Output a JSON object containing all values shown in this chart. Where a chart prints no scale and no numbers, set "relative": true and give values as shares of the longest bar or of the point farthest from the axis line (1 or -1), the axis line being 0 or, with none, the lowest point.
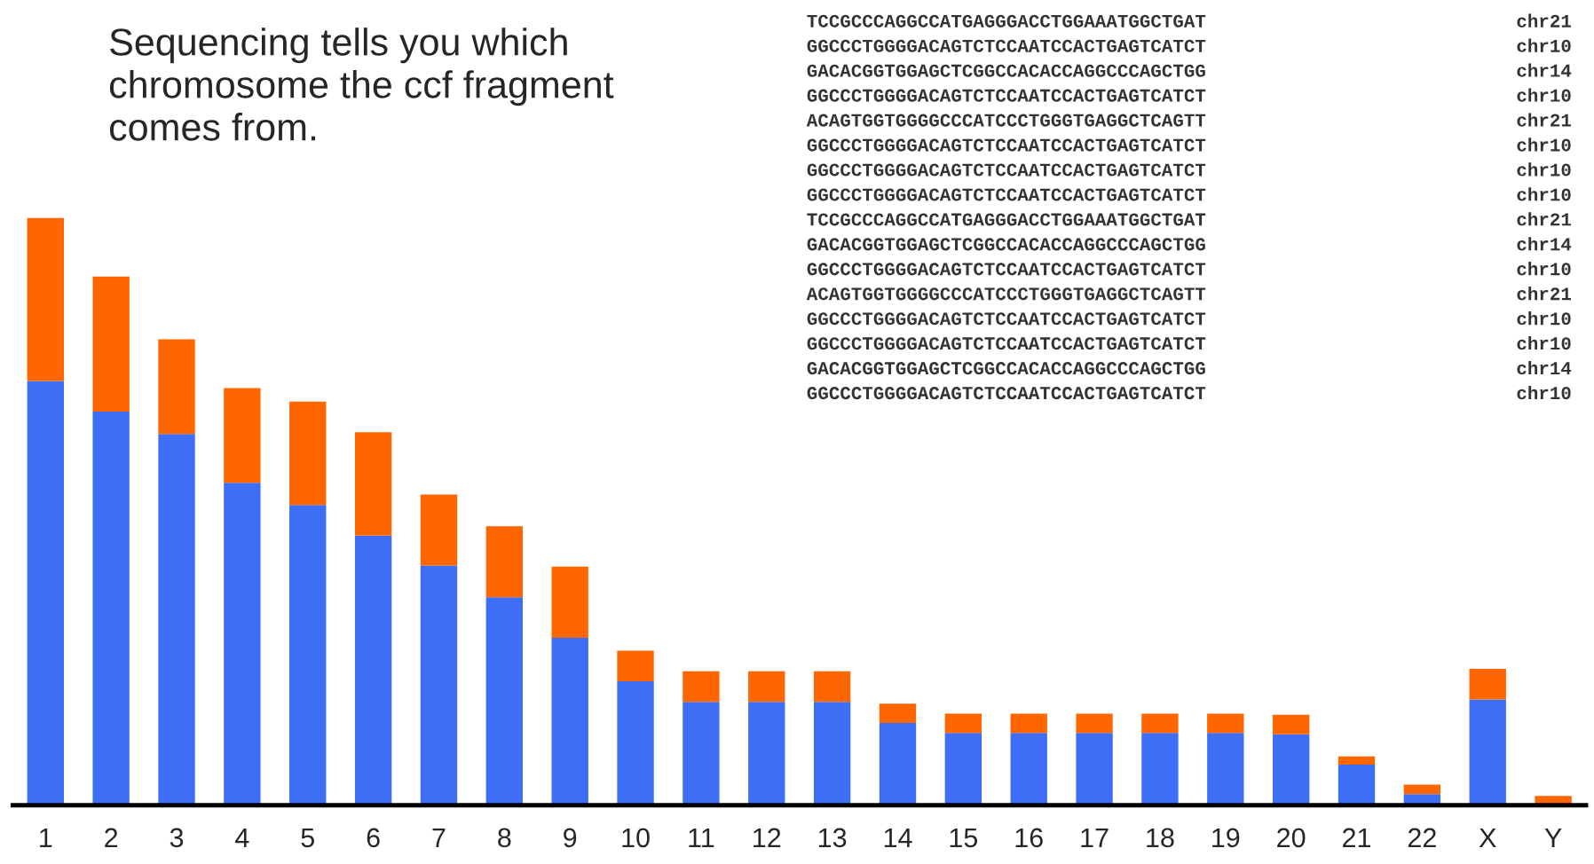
{
  "chart_data": {
    "type": "bar",
    "title": "Sequencing tells you which\nchromosome the ccf fragment\ncomes from.",
    "categories": [
      "1",
      "2",
      "3",
      "4",
      "5",
      "6",
      "7",
      "8",
      "9",
      "10",
      "11",
      "12",
      "13",
      "14",
      "15",
      "16",
      "17",
      "18",
      "19",
      "20",
      "21",
      "22",
      "X",
      "Y"
    ],
    "relative": true,
    "stacked": true,
    "grid": false,
    "legend": false,
    "series": [
      {
        "color": "#3d6ef5",
        "values": [
          0.722,
          0.67,
          0.632,
          0.549,
          0.511,
          0.459,
          0.408,
          0.354,
          0.285,
          0.211,
          0.176,
          0.176,
          0.176,
          0.14,
          0.123,
          0.123,
          0.123,
          0.123,
          0.123,
          0.121,
          0.069,
          0.019,
          0.18,
          0
        ]
      },
      {
        "color": "#ff6600",
        "values": [
          0.278,
          0.23,
          0.161,
          0.161,
          0.176,
          0.176,
          0.121,
          0.121,
          0.121,
          0.052,
          0.052,
          0.052,
          0.052,
          0.033,
          0.033,
          0.033,
          0.033,
          0.033,
          0.033,
          0.033,
          0.014,
          0.016,
          0.052,
          0.016
        ]
      }
    ],
    "annotations": [
      "TCCGCCCAGGCCATGAGGGACCTGGAAATGGCTGAT",
      "chr21",
      "GGCCCTGGGGACAGTCTCCAATCCACTGAGTCATCT",
      "chr10",
      "GACACGGTGGAGCTCGGCCACACCAGGCCCAGCTGG",
      "chr14",
      "GGCCCTGGGGACAGTCTCCAATCCACTGAGTCATCT",
      "chr10",
      "ACAGTGGTGGGGCCCATCCCTGGGTGAGGCTCAGTT",
      "chr21",
      "GGCCCTGGGGACAGTCTCCAATCCACTGAGTCATCT",
      "chr10",
      "GGCCCTGGGGACAGTCTCCAATCCACTGAGTCATCT",
      "chr10",
      "GGCCCTGGGGACAGTCTCCAATCCACTGAGTCATCT",
      "chr10",
      "TCCGCCCAGGCCATGAGGGACCTGGAAATGGCTGAT",
      "chr21",
      "GACACGGTGGAGCTCGGCCACACCAGGCCCAGCTGG",
      "chr14",
      "GGCCCTGGGGACAGTCTCCAATCCACTGAGTCATCT",
      "chr10",
      "ACAGTGGTGGGGCCCATCCCTGGGTGAGGCTCAGTT",
      "chr21",
      "GGCCCTGGGGACAGTCTCCAATCCACTGAGTCATCT",
      "chr10",
      "GGCCCTGGGGACAGTCTCCAATCCACTGAGTCATCT",
      "chr10",
      "GACACGGTGGAGCTCGGCCACACCAGGCCCAGCTGG",
      "chr14",
      "GGCCCTGGGGACAGTCTCCAATCCACTGAGTCATCT",
      "chr10"
    ]
  }
}
